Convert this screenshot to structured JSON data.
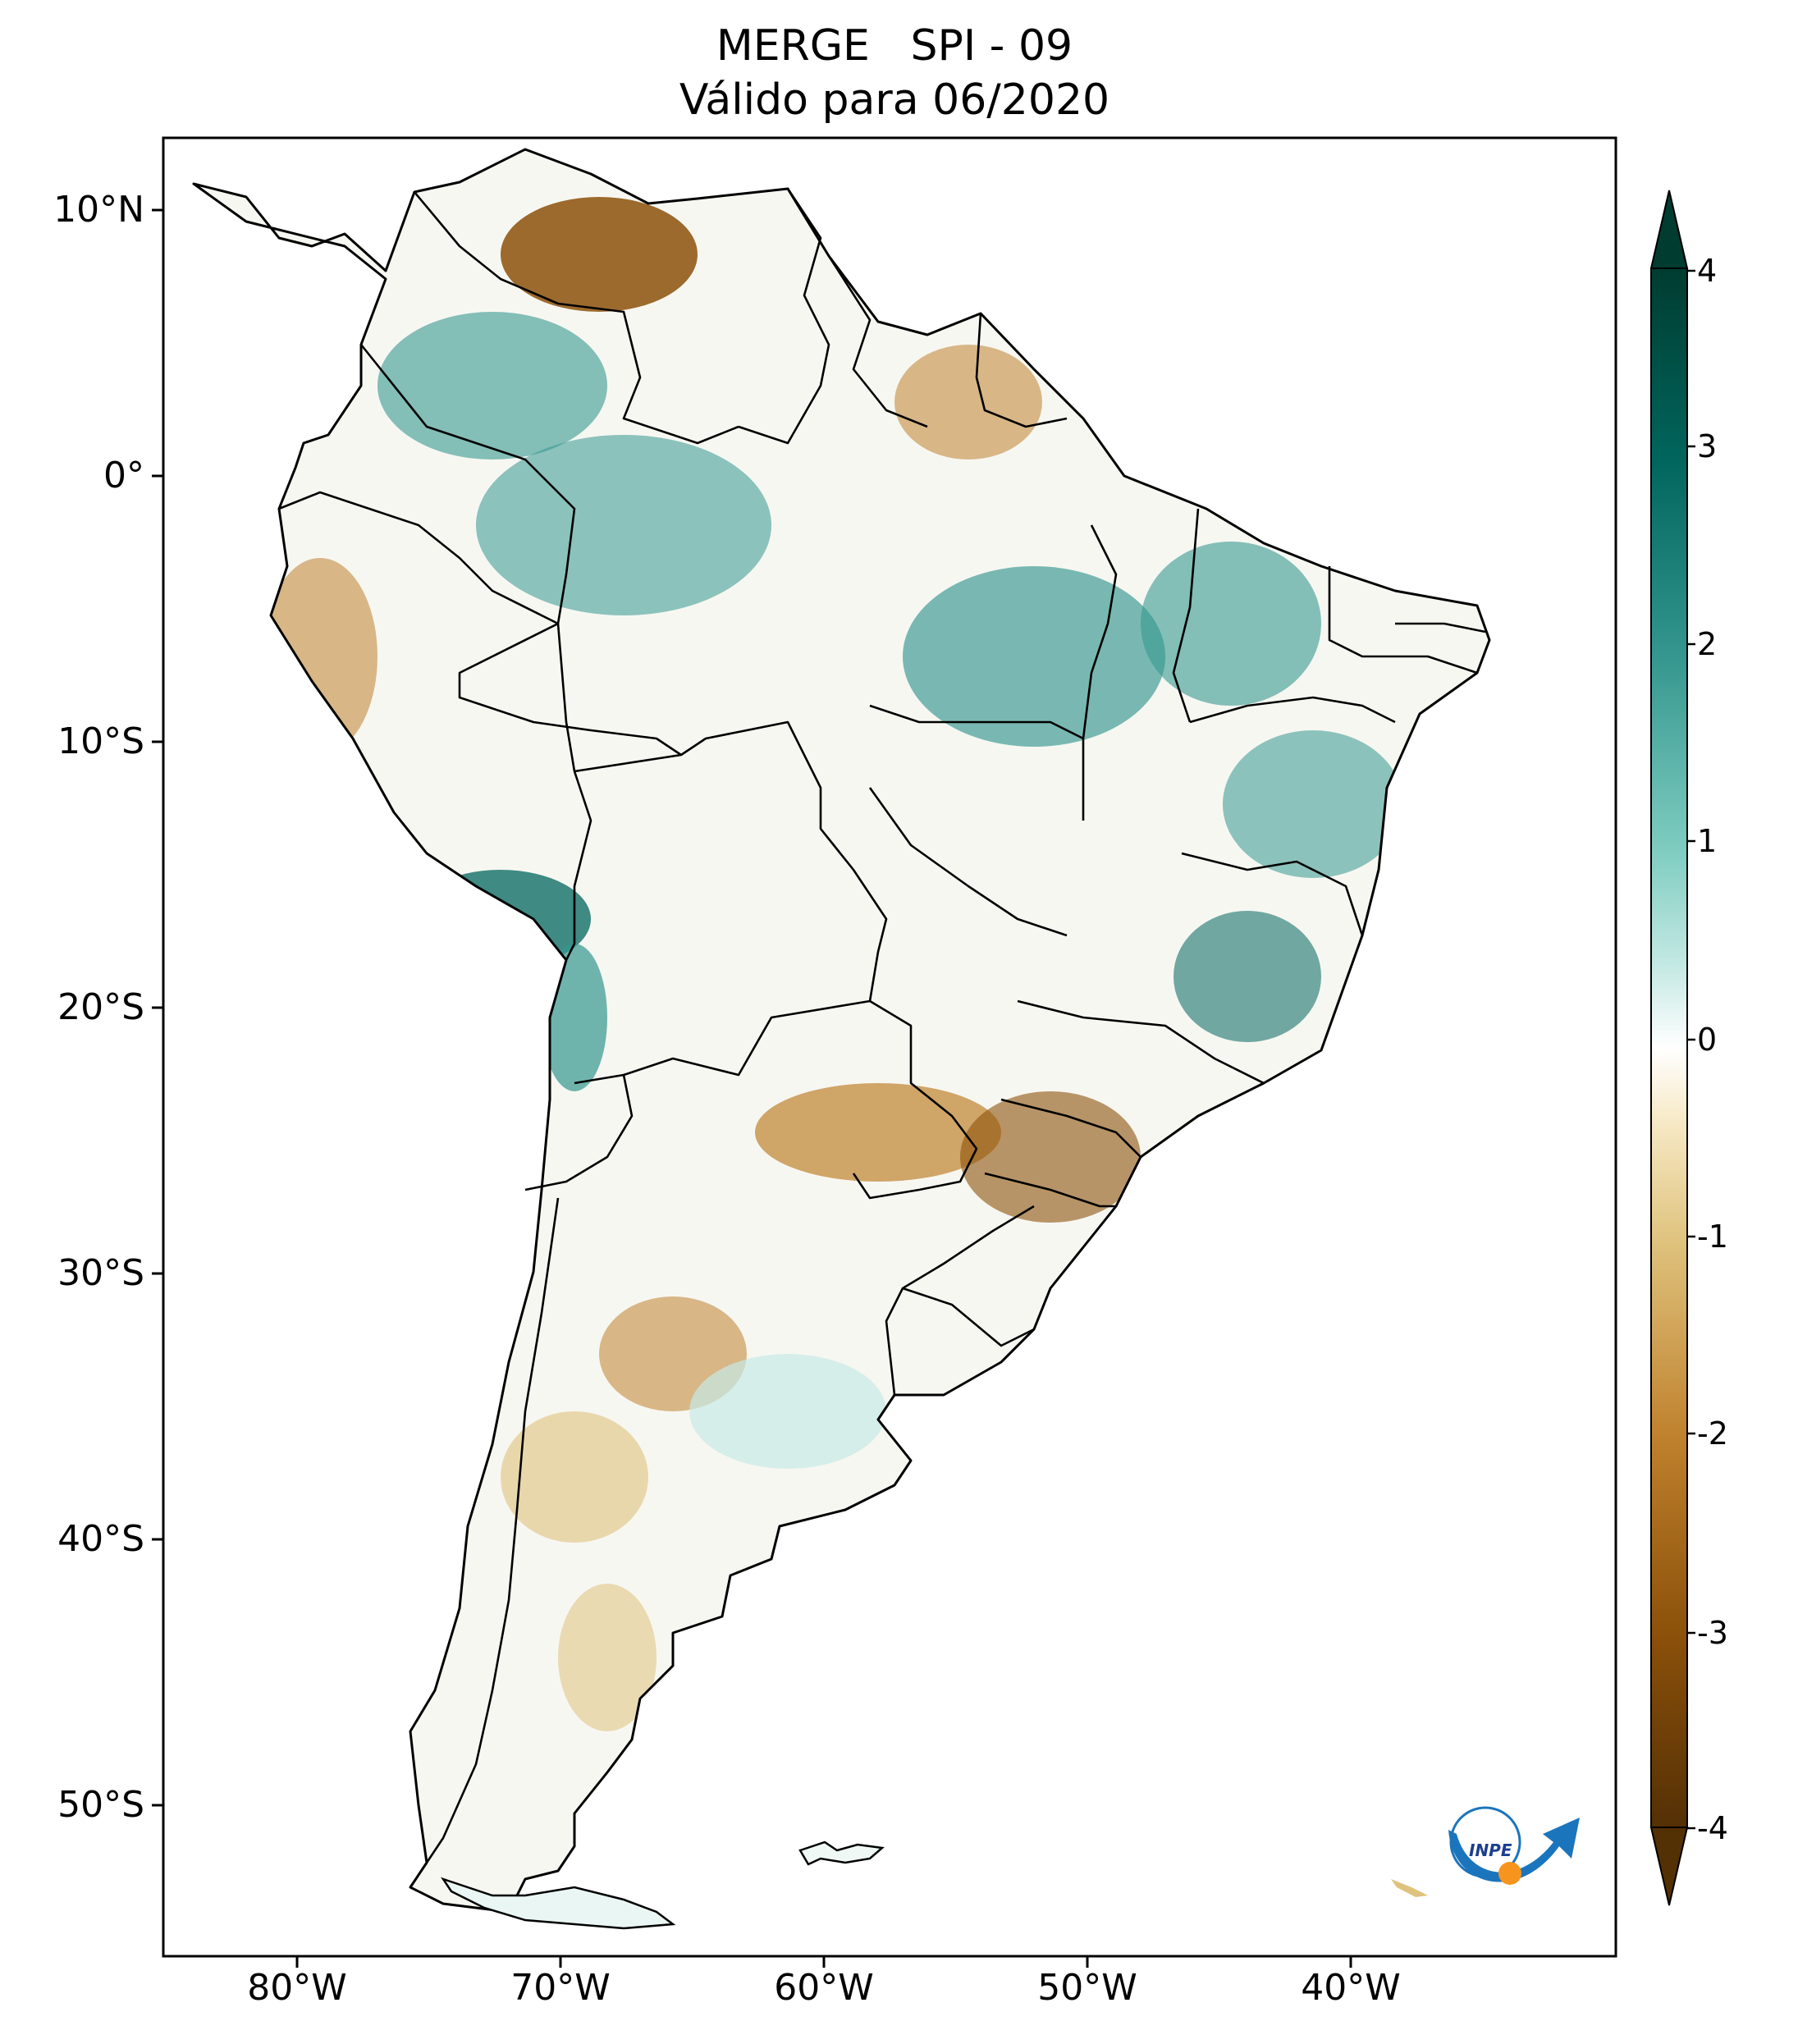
{
  "title": {
    "line1": "MERGE   SPI - 09",
    "line2": "Válido para 06/2020"
  },
  "map": {
    "region": "South America",
    "variable": "SPI - 09",
    "latitude_labels": [
      "10°N",
      "0°",
      "10°S",
      "20°S",
      "30°S",
      "40°S",
      "50°S"
    ],
    "longitude_labels": [
      "80°W",
      "70°W",
      "60°W",
      "50°W",
      "40°W"
    ]
  },
  "colorbar": {
    "ticks": [
      "4",
      "3",
      "2",
      "1",
      "0",
      "-1",
      "-2",
      "-3",
      "-4"
    ],
    "min": -4,
    "max": 4,
    "colors": {
      "extreme_wet": "#003c30",
      "very_wet": "#01665e",
      "wet": "#35978f",
      "moderately_wet": "#80cdc1",
      "slightly_wet": "#c7eae5",
      "normal": "#f5f5f5",
      "slightly_dry": "#f6e8c3",
      "moderately_dry": "#dfc27d",
      "dry": "#bf812d",
      "very_dry": "#8c510a",
      "extreme_dry": "#543005"
    }
  },
  "logo": {
    "text": "INPE"
  }
}
